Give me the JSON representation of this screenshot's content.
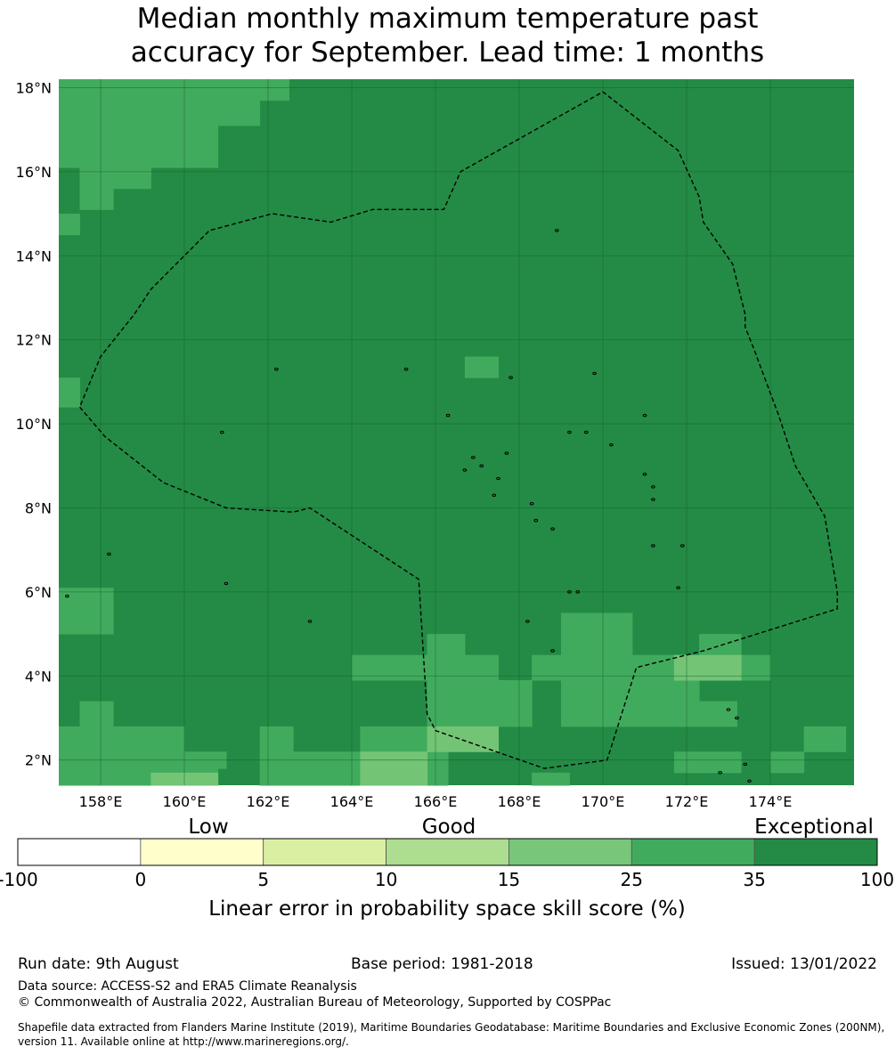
{
  "title": {
    "line1": "Median monthly maximum temperature past",
    "line2": "accuracy for September. Lead time: 1 months"
  },
  "map": {
    "lon_labels": [
      "158°E",
      "160°E",
      "162°E",
      "164°E",
      "166°E",
      "168°E",
      "170°E",
      "172°E",
      "174°E"
    ],
    "lat_labels": [
      "18°N",
      "16°N",
      "14°N",
      "12°N",
      "10°N",
      "8°N",
      "6°N",
      "4°N",
      "2°N"
    ],
    "lon_ticks": [
      158,
      160,
      162,
      164,
      166,
      168,
      170,
      172,
      174
    ],
    "lat_ticks": [
      18,
      16,
      14,
      12,
      10,
      8,
      6,
      4,
      2
    ],
    "lon_range": [
      157,
      176
    ],
    "lat_range": [
      1.4,
      18.2
    ],
    "category_colors": {
      "exceptional": "#238b45",
      "skill_25_35": "#41ab5d",
      "skill_15_25": "#74c476",
      "skill_10_15": "#a1d99b"
    },
    "eez_boundary": [
      [
        157.5,
        10.4
      ],
      [
        158.1,
        9.7
      ],
      [
        159.5,
        8.6
      ],
      [
        161.0,
        8.0
      ],
      [
        162.6,
        7.9
      ],
      [
        163.0,
        8.0
      ],
      [
        165.6,
        6.3
      ],
      [
        165.8,
        3.1
      ],
      [
        166.0,
        2.7
      ],
      [
        168.6,
        1.8
      ],
      [
        170.1,
        2.0
      ],
      [
        170.8,
        4.2
      ],
      [
        172.4,
        4.6
      ],
      [
        175.6,
        5.6
      ],
      [
        175.6,
        6.0
      ],
      [
        175.3,
        7.8
      ],
      [
        174.6,
        9.0
      ],
      [
        174.2,
        10.2
      ],
      [
        173.6,
        11.8
      ],
      [
        173.4,
        12.3
      ],
      [
        173.4,
        12.6
      ],
      [
        173.1,
        13.8
      ],
      [
        172.4,
        14.8
      ],
      [
        172.3,
        15.4
      ],
      [
        171.8,
        16.5
      ],
      [
        170.0,
        17.9
      ],
      [
        166.6,
        16.0
      ],
      [
        166.2,
        15.1
      ],
      [
        164.5,
        15.1
      ],
      [
        163.5,
        14.8
      ],
      [
        162.1,
        15.0
      ],
      [
        160.6,
        14.6
      ],
      [
        159.2,
        13.2
      ],
      [
        158.8,
        12.6
      ],
      [
        158.0,
        11.6
      ],
      [
        157.5,
        10.4
      ]
    ],
    "colored_cells": [
      {
        "lon0": 157.0,
        "lon1": 162.5,
        "lat0": 17.7,
        "lat1": 18.2,
        "cat": "skill_25_35"
      },
      {
        "lon0": 157.0,
        "lon1": 161.8,
        "lat0": 17.1,
        "lat1": 17.7,
        "cat": "skill_25_35"
      },
      {
        "lon0": 157.0,
        "lon1": 160.8,
        "lat0": 16.1,
        "lat1": 17.1,
        "cat": "skill_25_35"
      },
      {
        "lon0": 157.5,
        "lon1": 159.2,
        "lat0": 15.6,
        "lat1": 16.1,
        "cat": "skill_25_35"
      },
      {
        "lon0": 157.5,
        "lon1": 158.3,
        "lat0": 15.1,
        "lat1": 15.6,
        "cat": "skill_25_35"
      },
      {
        "lon0": 157.0,
        "lon1": 157.5,
        "lat0": 14.5,
        "lat1": 15.0,
        "cat": "skill_25_35"
      },
      {
        "lon0": 157.0,
        "lon1": 157.5,
        "lat0": 10.4,
        "lat1": 11.1,
        "cat": "skill_25_35"
      },
      {
        "lon0": 166.7,
        "lon1": 167.5,
        "lat0": 11.1,
        "lat1": 11.6,
        "cat": "skill_25_35"
      },
      {
        "lon0": 157.0,
        "lon1": 158.3,
        "lat0": 5.0,
        "lat1": 6.1,
        "cat": "skill_25_35"
      },
      {
        "lon0": 169.0,
        "lon1": 170.7,
        "lat0": 4.5,
        "lat1": 5.5,
        "cat": "skill_25_35"
      },
      {
        "lon0": 169.0,
        "lon1": 172.3,
        "lat0": 3.9,
        "lat1": 4.5,
        "cat": "skill_25_35"
      },
      {
        "lon0": 172.3,
        "lon1": 173.3,
        "lat0": 4.5,
        "lat1": 5.0,
        "cat": "skill_25_35"
      },
      {
        "lon0": 172.3,
        "lon1": 174.0,
        "lat0": 3.9,
        "lat1": 4.5,
        "cat": "skill_25_35"
      },
      {
        "lon0": 169.0,
        "lon1": 170.7,
        "lat0": 2.8,
        "lat1": 3.9,
        "cat": "skill_25_35"
      },
      {
        "lon0": 170.7,
        "lon1": 173.2,
        "lat0": 2.8,
        "lat1": 3.4,
        "cat": "skill_25_35"
      },
      {
        "lon0": 170.7,
        "lon1": 172.3,
        "lat0": 3.4,
        "lat1": 3.9,
        "cat": "skill_25_35"
      },
      {
        "lon0": 164.0,
        "lon1": 167.5,
        "lat0": 3.9,
        "lat1": 4.5,
        "cat": "skill_25_35"
      },
      {
        "lon0": 165.8,
        "lon1": 166.7,
        "lat0": 4.5,
        "lat1": 5.0,
        "cat": "skill_25_35"
      },
      {
        "lon0": 168.3,
        "lon1": 169.2,
        "lat0": 3.9,
        "lat1": 4.5,
        "cat": "skill_25_35"
      },
      {
        "lon0": 165.8,
        "lon1": 168.3,
        "lat0": 2.8,
        "lat1": 3.9,
        "cat": "skill_25_35"
      },
      {
        "lon0": 157.0,
        "lon1": 160.0,
        "lat0": 1.4,
        "lat1": 2.8,
        "cat": "skill_25_35"
      },
      {
        "lon0": 157.5,
        "lon1": 158.3,
        "lat0": 2.8,
        "lat1": 3.4,
        "cat": "skill_25_35"
      },
      {
        "lon0": 160.0,
        "lon1": 160.8,
        "lat0": 1.4,
        "lat1": 2.2,
        "cat": "skill_25_35"
      },
      {
        "lon0": 160.8,
        "lon1": 161.0,
        "lat0": 1.8,
        "lat1": 2.2,
        "cat": "skill_25_35"
      },
      {
        "lon0": 161.8,
        "lon1": 162.6,
        "lat0": 1.4,
        "lat1": 2.8,
        "cat": "skill_25_35"
      },
      {
        "lon0": 162.6,
        "lon1": 164.2,
        "lat0": 1.4,
        "lat1": 2.2,
        "cat": "skill_25_35"
      },
      {
        "lon0": 164.2,
        "lon1": 165.8,
        "lat0": 2.2,
        "lat1": 2.8,
        "cat": "skill_25_35"
      },
      {
        "lon0": 165.8,
        "lon1": 166.3,
        "lat0": 1.4,
        "lat1": 2.2,
        "cat": "skill_25_35"
      },
      {
        "lon0": 168.3,
        "lon1": 169.2,
        "lat0": 1.4,
        "lat1": 1.7,
        "cat": "skill_25_35"
      },
      {
        "lon0": 171.7,
        "lon1": 172.3,
        "lat0": 1.7,
        "lat1": 2.2,
        "cat": "skill_25_35"
      },
      {
        "lon0": 172.3,
        "lon1": 173.3,
        "lat0": 1.7,
        "lat1": 2.2,
        "cat": "skill_25_35"
      },
      {
        "lon0": 174.0,
        "lon1": 174.8,
        "lat0": 1.7,
        "lat1": 2.2,
        "cat": "skill_25_35"
      },
      {
        "lon0": 174.8,
        "lon1": 175.8,
        "lat0": 2.2,
        "lat1": 2.8,
        "cat": "skill_25_35"
      },
      {
        "lon0": 164.2,
        "lon1": 165.8,
        "lat0": 1.4,
        "lat1": 2.2,
        "cat": "skill_15_25"
      },
      {
        "lon0": 165.8,
        "lon1": 167.5,
        "lat0": 2.2,
        "lat1": 2.8,
        "cat": "skill_15_25"
      },
      {
        "lon0": 159.2,
        "lon1": 160.8,
        "lat0": 1.4,
        "lat1": 1.7,
        "cat": "skill_15_25"
      },
      {
        "lon0": 171.7,
        "lon1": 173.3,
        "lat0": 3.9,
        "lat1": 4.5,
        "cat": "skill_15_25"
      }
    ],
    "islands": [
      [
        158.2,
        6.9
      ],
      [
        161.0,
        6.2
      ],
      [
        163.0,
        5.3
      ],
      [
        167.8,
        11.1
      ],
      [
        165.3,
        11.3
      ],
      [
        162.2,
        11.3
      ],
      [
        168.9,
        14.6
      ],
      [
        169.8,
        11.2
      ],
      [
        171.0,
        10.2
      ],
      [
        169.6,
        9.8
      ],
      [
        169.2,
        9.8
      ],
      [
        170.2,
        9.5
      ],
      [
        166.3,
        10.2
      ],
      [
        166.7,
        8.9
      ],
      [
        167.7,
        9.3
      ],
      [
        166.9,
        9.2
      ],
      [
        167.1,
        9.0
      ],
      [
        167.5,
        8.7
      ],
      [
        167.4,
        8.3
      ],
      [
        168.3,
        8.1
      ],
      [
        168.4,
        7.7
      ],
      [
        168.8,
        7.5
      ],
      [
        169.2,
        6.0
      ],
      [
        169.4,
        6.0
      ],
      [
        171.2,
        7.1
      ],
      [
        171.9,
        7.1
      ],
      [
        171.8,
        6.1
      ],
      [
        173.0,
        3.2
      ],
      [
        173.2,
        3.0
      ],
      [
        173.4,
        1.9
      ],
      [
        173.5,
        1.5
      ],
      [
        168.8,
        4.6
      ],
      [
        168.2,
        5.3
      ],
      [
        171.0,
        8.8
      ],
      [
        171.2,
        8.5
      ],
      [
        171.2,
        8.2
      ],
      [
        157.2,
        5.9
      ],
      [
        160.9,
        9.8
      ],
      [
        172.8,
        1.7
      ]
    ]
  },
  "colorbar": {
    "category_labels": [
      "Low",
      "Good",
      "Exceptional"
    ],
    "bins": [
      {
        "color": "#ffffff"
      },
      {
        "color": "#ffffcc"
      },
      {
        "color": "#d9f0a3"
      },
      {
        "color": "#addd8e"
      },
      {
        "color": "#78c679"
      },
      {
        "color": "#41ab5d"
      },
      {
        "color": "#238b45"
      }
    ],
    "tick_labels": [
      "-100",
      "0",
      "5",
      "10",
      "15",
      "25",
      "35",
      "100"
    ],
    "axis_label": "Linear error in probability space skill score (%)"
  },
  "footer": {
    "run_date": "Run date: 9th August",
    "base_period": "Base period: 1981-2018",
    "issued": "Issued: 13/01/2022",
    "data_source": "Data source: ACCESS-S2 and ERA5 Climate Reanalysis",
    "copyright": "© Commonwealth of Australia 2022, Australian Bureau of Meteorology, Supported by COSPPac",
    "shapefile_note": "Shapefile data extracted from Flanders Marine Institute (2019), Maritime Boundaries Geodatabase: Maritime Boundaries and Exclusive Economic Zones (200NM), version 11. Available online at http://www.marineregions.org/."
  }
}
